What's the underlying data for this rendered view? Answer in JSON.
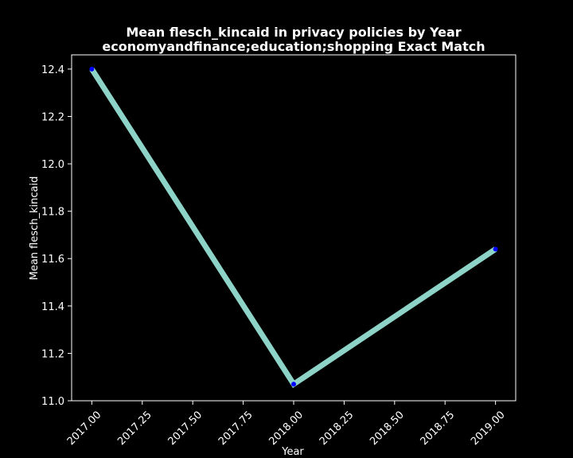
{
  "chart_data": {
    "type": "line",
    "title": "Mean flesch_kincaid in privacy policies by Year",
    "subtitle": "economyandfinance;education;shopping Exact Match",
    "xlabel": "Year",
    "ylabel": "Mean flesch_kincaid",
    "x": [
      2017.0,
      2018.0,
      2019.0
    ],
    "series": [
      {
        "values": [
          12.4,
          11.07,
          11.64
        ]
      }
    ],
    "xlim": [
      2016.9,
      2019.1
    ],
    "ylim": [
      11.0,
      12.46
    ],
    "x_ticks": [
      "2017.00",
      "2017.25",
      "2017.50",
      "2017.75",
      "2018.00",
      "2018.25",
      "2018.50",
      "2018.75",
      "2019.00"
    ],
    "y_ticks": [
      "11.0",
      "11.2",
      "11.4",
      "11.6",
      "11.8",
      "12.0",
      "12.2",
      "12.4"
    ],
    "grid": false,
    "colors": {
      "background": "#000000",
      "line": "#8dd3c7",
      "marker": "#0000ff",
      "axes": "#ffffff",
      "text": "#ffffff"
    }
  }
}
